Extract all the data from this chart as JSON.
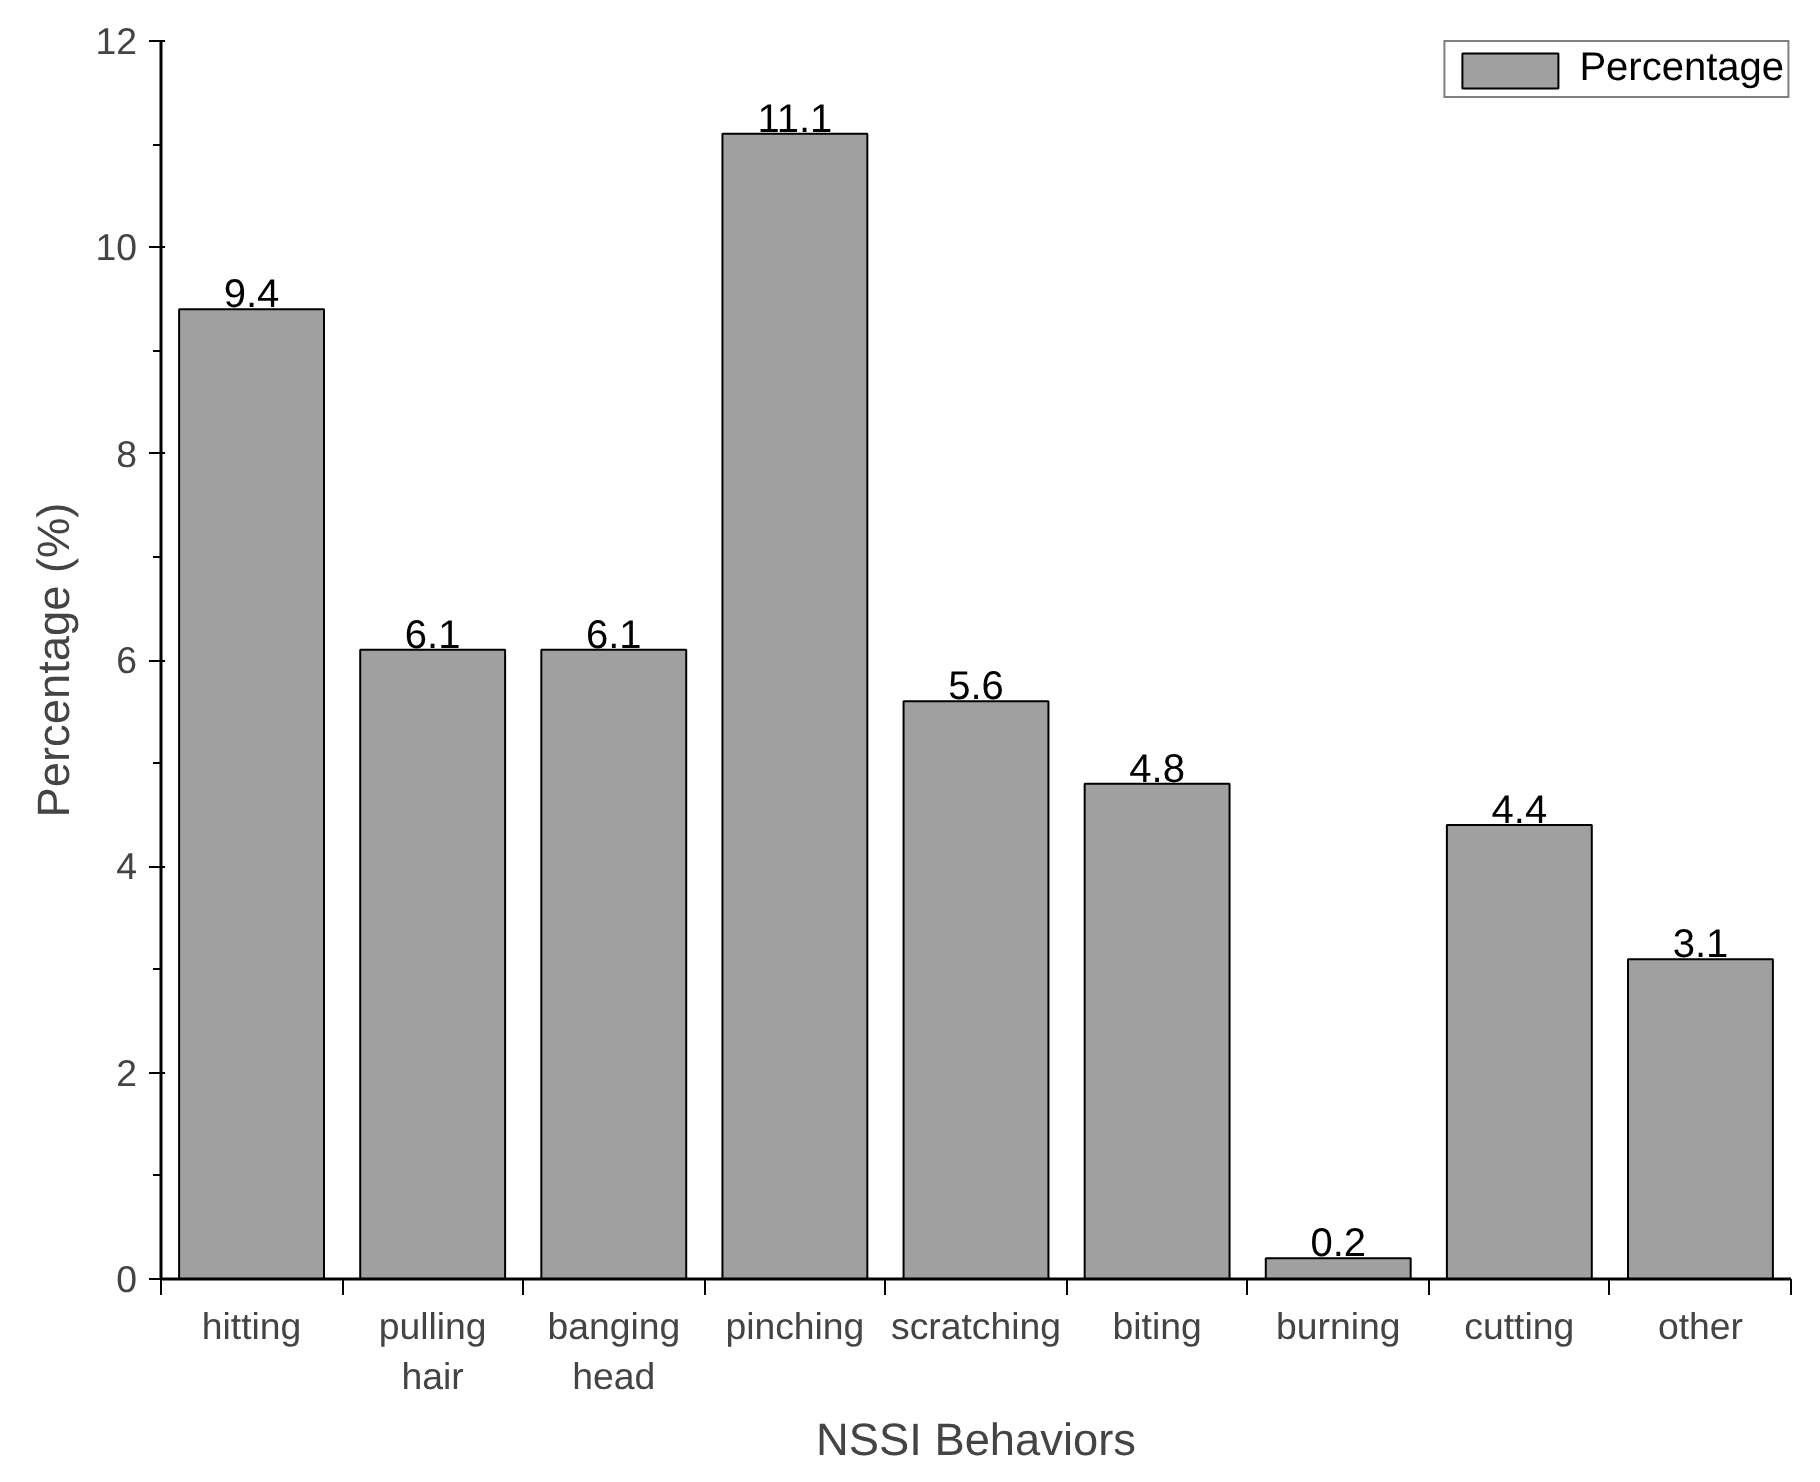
{
  "chart_data": {
    "type": "bar",
    "xlabel": "NSSI Behaviors",
    "ylabel": "Percentage (%)",
    "categories": [
      "hitting",
      "pulling hair",
      "banging head",
      "pinching",
      "scratching",
      "biting",
      "burning",
      "cutting",
      "other"
    ],
    "series": [
      {
        "name": "Percentage",
        "color": "#a0a0a0",
        "values": [
          9.4,
          6.1,
          6.1,
          11.1,
          5.6,
          4.8,
          0.2,
          4.4,
          3.1
        ]
      }
    ],
    "ylim": [
      0,
      12
    ],
    "yticks": [
      0,
      2,
      4,
      6,
      8,
      10,
      12
    ],
    "grid": false,
    "legend": "top right",
    "data_labels": true
  }
}
